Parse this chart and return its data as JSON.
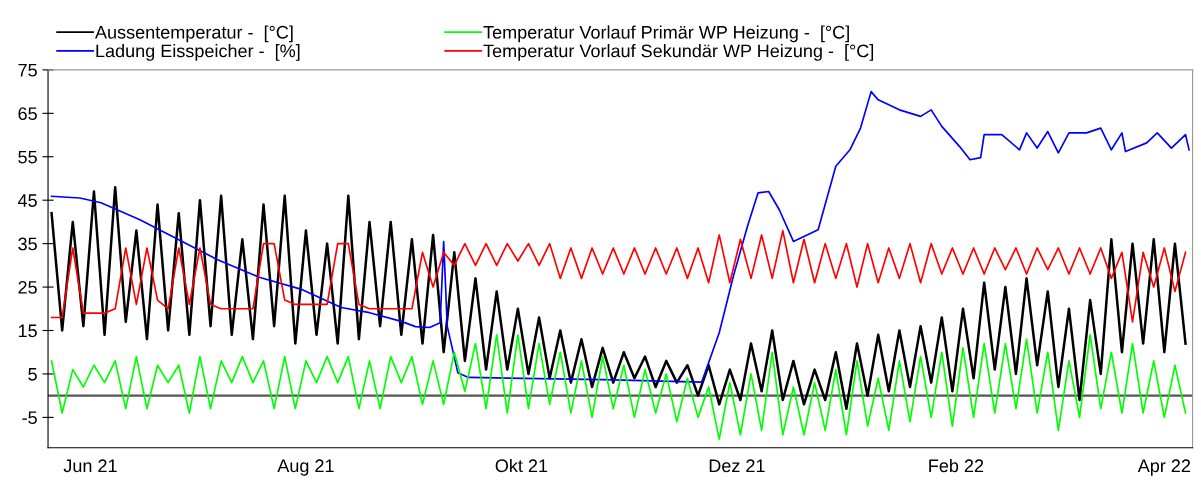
{
  "chart_data": {
    "type": "line",
    "x": [
      "2021-05-21",
      "2021-05-24",
      "2021-05-27",
      "2021-05-30",
      "2021-06-02",
      "2021-06-05",
      "2021-06-08",
      "2021-06-11",
      "2021-06-14",
      "2021-06-17",
      "2021-06-20",
      "2021-06-23",
      "2021-06-26",
      "2021-06-29",
      "2021-07-02",
      "2021-07-05",
      "2021-07-08",
      "2021-07-11",
      "2021-07-14",
      "2021-07-17",
      "2021-07-20",
      "2021-07-23",
      "2021-07-26",
      "2021-07-29",
      "2021-08-01",
      "2021-08-04",
      "2021-08-07",
      "2021-08-10",
      "2021-08-13",
      "2021-08-16",
      "2021-08-19",
      "2021-08-22",
      "2021-08-25",
      "2021-08-28",
      "2021-08-31",
      "2021-09-03",
      "2021-09-06",
      "2021-09-09",
      "2021-09-12",
      "2021-09-15",
      "2021-09-18",
      "2021-09-21",
      "2021-09-24",
      "2021-09-27",
      "2021-09-30",
      "2021-10-03",
      "2021-10-06",
      "2021-10-09",
      "2021-10-12",
      "2021-10-15",
      "2021-10-18",
      "2021-10-21",
      "2021-10-24",
      "2021-10-27",
      "2021-10-30",
      "2021-11-02",
      "2021-11-05",
      "2021-11-08",
      "2021-11-11",
      "2021-11-14",
      "2021-11-17",
      "2021-11-20",
      "2021-11-23",
      "2021-11-26",
      "2021-11-29",
      "2021-12-02",
      "2021-12-05",
      "2021-12-08",
      "2021-12-11",
      "2021-12-14",
      "2021-12-17",
      "2021-12-20",
      "2021-12-23",
      "2021-12-26",
      "2021-12-29",
      "2022-01-01",
      "2022-01-04",
      "2022-01-07",
      "2022-01-10",
      "2022-01-13",
      "2022-01-16",
      "2022-01-19",
      "2022-01-22",
      "2022-01-25",
      "2022-01-28",
      "2022-01-31",
      "2022-02-03",
      "2022-02-06",
      "2022-02-09",
      "2022-02-12",
      "2022-02-15",
      "2022-02-18",
      "2022-02-21",
      "2022-02-24",
      "2022-02-27",
      "2022-03-02",
      "2022-03-05",
      "2022-03-08",
      "2022-03-11",
      "2022-03-14",
      "2022-03-17",
      "2022-03-20",
      "2022-03-23",
      "2022-03-26",
      "2022-03-29",
      "2022-04-01",
      "2022-04-04",
      "2022-04-07"
    ],
    "series": [
      {
        "name": "Aussentemperatur -  [°C]",
        "color": "#000000",
        "values": [
          42,
          15,
          40,
          16,
          47,
          14,
          48,
          17,
          38,
          13,
          44,
          15,
          42,
          14,
          45,
          16,
          46,
          14,
          36,
          13,
          44,
          16,
          46,
          12,
          38,
          14,
          35,
          12,
          46,
          13,
          40,
          16,
          40,
          14,
          36,
          12,
          37,
          10,
          33,
          8,
          27,
          6,
          24,
          6,
          20,
          5,
          18,
          4,
          15,
          3,
          13,
          2,
          11,
          3,
          10,
          4,
          9,
          2,
          8,
          3,
          7,
          0,
          7,
          -2,
          6,
          -1,
          12,
          1,
          15,
          -1,
          8,
          -2,
          6,
          -1,
          10,
          -3,
          12,
          0,
          14,
          1,
          15,
          2,
          16,
          3,
          18,
          1,
          20,
          4,
          26,
          6,
          25,
          5,
          27,
          7,
          24,
          2,
          20,
          -1,
          22,
          5,
          36,
          10,
          35,
          12,
          36,
          10,
          35,
          12
        ]
      },
      {
        "name": "Ladung Eisspeicher -  [%]",
        "color": "#0000ff",
        "x": [
          "2021-05-21",
          "2021-05-29",
          "2021-06-04",
          "2021-06-15",
          "2021-06-26",
          "2021-07-07",
          "2021-07-19",
          "2021-07-31",
          "2021-08-11",
          "2021-08-19",
          "2021-08-28",
          "2021-09-01",
          "2021-09-05",
          "2021-09-08",
          "2021-09-09",
          "2021-09-10",
          "2021-09-13",
          "2021-09-16",
          "2021-10-24",
          "2021-11-21",
          "2021-11-22",
          "2021-11-26",
          "2021-11-30",
          "2021-12-04",
          "2021-12-07",
          "2021-12-10",
          "2021-12-13",
          "2021-12-17",
          "2021-12-24",
          "2021-12-29",
          "2022-01-02",
          "2022-01-05",
          "2022-01-08",
          "2022-01-10",
          "2022-01-16",
          "2022-01-22",
          "2022-01-25",
          "2022-01-28",
          "2022-02-02",
          "2022-02-05",
          "2022-02-08",
          "2022-02-09",
          "2022-02-14",
          "2022-02-19",
          "2022-02-21",
          "2022-02-24",
          "2022-02-27",
          "2022-03-02",
          "2022-03-05",
          "2022-03-10",
          "2022-03-14",
          "2022-03-17",
          "2022-03-20",
          "2022-03-21",
          "2022-03-27",
          "2022-03-30",
          "2022-04-03",
          "2022-04-07",
          "2022-04-08"
        ],
        "values": [
          45.9,
          45.5,
          44.4,
          40.5,
          35.9,
          31.3,
          27.2,
          24.4,
          20.3,
          19.1,
          17.1,
          15.9,
          15.7,
          16.8,
          35.5,
          16,
          5.3,
          4.2,
          3.7,
          3.1,
          5.3,
          14.5,
          27.5,
          39,
          46.7,
          47,
          42.8,
          35.5,
          38.2,
          52.8,
          56.6,
          61.6,
          70,
          68.1,
          65.8,
          64.3,
          65.8,
          62,
          57.4,
          54.3,
          54.8,
          60.1,
          60.1,
          56.6,
          60.5,
          57,
          60.8,
          55.9,
          60.5,
          60.5,
          61.6,
          56.6,
          60.5,
          56.2,
          58.2,
          60.5,
          57,
          60.1,
          56.6
        ]
      },
      {
        "name": "Temperatur Vorlauf Primär WP Heizung -  [°C]",
        "color": "#00ff00",
        "values": [
          8,
          -4,
          6,
          2,
          7,
          3,
          8,
          -3,
          9,
          -3,
          7,
          3,
          7,
          -4,
          9,
          -3,
          8,
          3,
          9,
          3,
          8,
          -3,
          9,
          -3,
          8,
          3,
          9,
          3,
          9,
          -3,
          8,
          -3,
          9,
          3,
          9,
          -2,
          8,
          -2,
          10,
          1,
          12,
          -3,
          14,
          -4,
          14,
          -3,
          12,
          -2,
          10,
          -4,
          8,
          -5,
          9,
          -3,
          7,
          -5,
          6,
          -4,
          5,
          -6,
          4,
          -5,
          2,
          -10,
          3,
          -9,
          5,
          -8,
          10,
          -9,
          2,
          -9,
          3,
          -8,
          6,
          -9,
          8,
          -7,
          4,
          -8,
          8,
          -6,
          9,
          -5,
          10,
          -7,
          11,
          -5,
          12,
          -4,
          12,
          -3,
          13,
          -4,
          10,
          -8,
          8,
          -5,
          14,
          -3,
          10,
          -4,
          12,
          -4,
          8,
          -5,
          7,
          -4
        ]
      },
      {
        "name": "Temperatur Vorlauf Sekundär WP Heizung -  [°C]",
        "color": "#ff0000",
        "values": [
          18,
          18,
          34,
          19,
          19,
          19,
          20,
          34,
          21,
          34,
          22,
          20,
          34,
          21,
          34,
          21,
          20,
          20,
          20,
          20,
          35,
          35,
          22,
          21,
          21,
          21,
          21,
          35,
          35,
          21,
          20,
          20,
          20,
          20,
          20,
          33,
          25,
          33,
          30,
          35,
          30,
          35,
          30,
          35,
          31,
          35,
          30,
          35,
          27,
          34,
          27,
          34,
          28,
          34,
          28,
          34,
          28,
          34,
          28,
          34,
          27,
          34,
          26,
          37,
          26,
          36,
          27,
          37,
          27,
          38,
          26,
          36,
          26,
          35,
          27,
          35,
          25,
          35,
          26,
          34,
          27,
          35,
          26,
          35,
          28,
          34,
          28,
          34,
          28,
          34,
          29,
          34,
          28,
          34,
          29,
          34,
          28,
          34,
          28,
          34,
          27,
          33,
          17,
          33,
          25,
          34,
          24,
          33
        ]
      }
    ],
    "xlim": [
      "2021-05-20",
      "2022-04-09"
    ],
    "xticks": [
      {
        "value": "2021-06-01",
        "label": "Jun 21"
      },
      {
        "value": "2021-08-01",
        "label": "Aug 21"
      },
      {
        "value": "2021-10-01",
        "label": "Okt 21"
      },
      {
        "value": "2021-12-01",
        "label": "Dez 21"
      },
      {
        "value": "2022-02-01",
        "label": "Feb 22"
      },
      {
        "value": "2022-04-01",
        "label": "Apr 22"
      }
    ],
    "ylim": [
      -12,
      75
    ],
    "yticks": [
      -5,
      5,
      15,
      25,
      35,
      45,
      55,
      65,
      75
    ],
    "ref_lines": [
      {
        "axis": "y",
        "value": 0,
        "color": "#555555",
        "line_style": "solid"
      }
    ],
    "legend": "top",
    "grid": false,
    "marker": "none",
    "line_style": "solid"
  }
}
